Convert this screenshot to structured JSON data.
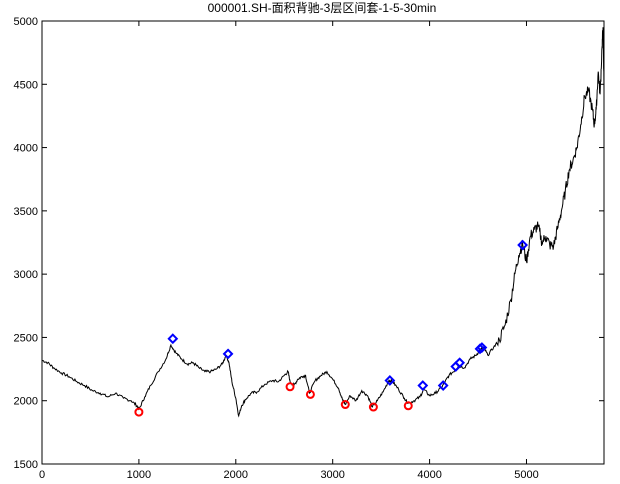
{
  "chart_data": {
    "type": "line",
    "title": "000001.SH-面积背驰-3层区间套-1-5-30min",
    "xlabel": "",
    "ylabel": "",
    "xlim": [
      0,
      5800
    ],
    "ylim": [
      1500,
      5000
    ],
    "xticks": [
      "0",
      "1000",
      "2000",
      "3000",
      "4000",
      "5000"
    ],
    "yticks": [
      "1500",
      "2000",
      "2500",
      "3000",
      "3500",
      "4000",
      "4500",
      "5000"
    ],
    "grid": false,
    "legend": "none",
    "colors": {
      "line": "#000000",
      "buy": "#ff0000",
      "sell": "#0000ff"
    },
    "series": [
      {
        "marker": "line",
        "x": [
          0,
          60,
          120,
          200,
          280,
          360,
          440,
          520,
          600,
          680,
          760,
          840,
          920,
          980,
          1000,
          1060,
          1120,
          1200,
          1280,
          1330,
          1380,
          1440,
          1500,
          1560,
          1620,
          1680,
          1740,
          1800,
          1860,
          1900,
          1930,
          1960,
          2000,
          2030,
          2060,
          2100,
          2160,
          2220,
          2300,
          2380,
          2440,
          2500,
          2540,
          2560,
          2600,
          2640,
          2680,
          2720,
          2760,
          2820,
          2880,
          2940,
          3000,
          3060,
          3100,
          3130,
          3180,
          3240,
          3300,
          3360,
          3410,
          3460,
          3520,
          3580,
          3620,
          3680,
          3740,
          3780,
          3840,
          3900,
          3940,
          4000,
          4060,
          4120,
          4160,
          4200,
          4260,
          4300,
          4360,
          4420,
          4480,
          4520,
          4560,
          4600,
          4660,
          4720,
          4780,
          4840,
          4880,
          4920,
          4960,
          5000,
          5040,
          5080,
          5120,
          5160,
          5200,
          5240,
          5280,
          5320,
          5360,
          5400,
          5440,
          5480,
          5520,
          5560,
          5600,
          5640,
          5680,
          5700,
          5720,
          5740,
          5760,
          5780,
          5790,
          5800
        ],
        "y": [
          2320,
          2300,
          2260,
          2220,
          2190,
          2150,
          2120,
          2080,
          2060,
          2030,
          2060,
          2020,
          2000,
          1960,
          1930,
          2030,
          2120,
          2230,
          2330,
          2440,
          2380,
          2330,
          2290,
          2300,
          2260,
          2230,
          2230,
          2250,
          2290,
          2360,
          2300,
          2150,
          2020,
          1880,
          1960,
          2010,
          2060,
          2070,
          2130,
          2160,
          2150,
          2200,
          2230,
          2150,
          2120,
          2170,
          2190,
          2200,
          2060,
          2160,
          2200,
          2230,
          2170,
          2100,
          2010,
          1970,
          2040,
          2000,
          2080,
          2040,
          1950,
          2000,
          2070,
          2160,
          2150,
          2090,
          2020,
          1980,
          2000,
          2030,
          2090,
          2040,
          2060,
          2100,
          2150,
          2200,
          2240,
          2280,
          2260,
          2330,
          2360,
          2400,
          2420,
          2360,
          2420,
          2480,
          2600,
          2800,
          3000,
          3150,
          3240,
          3100,
          3300,
          3350,
          3380,
          3250,
          3300,
          3230,
          3220,
          3360,
          3500,
          3650,
          3820,
          3900,
          4000,
          4180,
          4400,
          4450,
          4300,
          4180,
          4300,
          4600,
          4420,
          4800,
          4950,
          4450
        ]
      },
      {
        "name": "",
        "marker": "circle",
        "x": [
          1000,
          2560,
          2770,
          3130,
          3420,
          3780
        ],
        "y": [
          1910,
          2110,
          2050,
          1970,
          1950,
          1960
        ]
      },
      {
        "name": "",
        "marker": "diamond",
        "x": [
          1350,
          1920,
          3590,
          3930,
          4140,
          4270,
          4310,
          4520,
          4540,
          4960
        ],
        "y": [
          2490,
          2370,
          2160,
          2120,
          2120,
          2270,
          2300,
          2410,
          2420,
          3230
        ]
      }
    ]
  }
}
